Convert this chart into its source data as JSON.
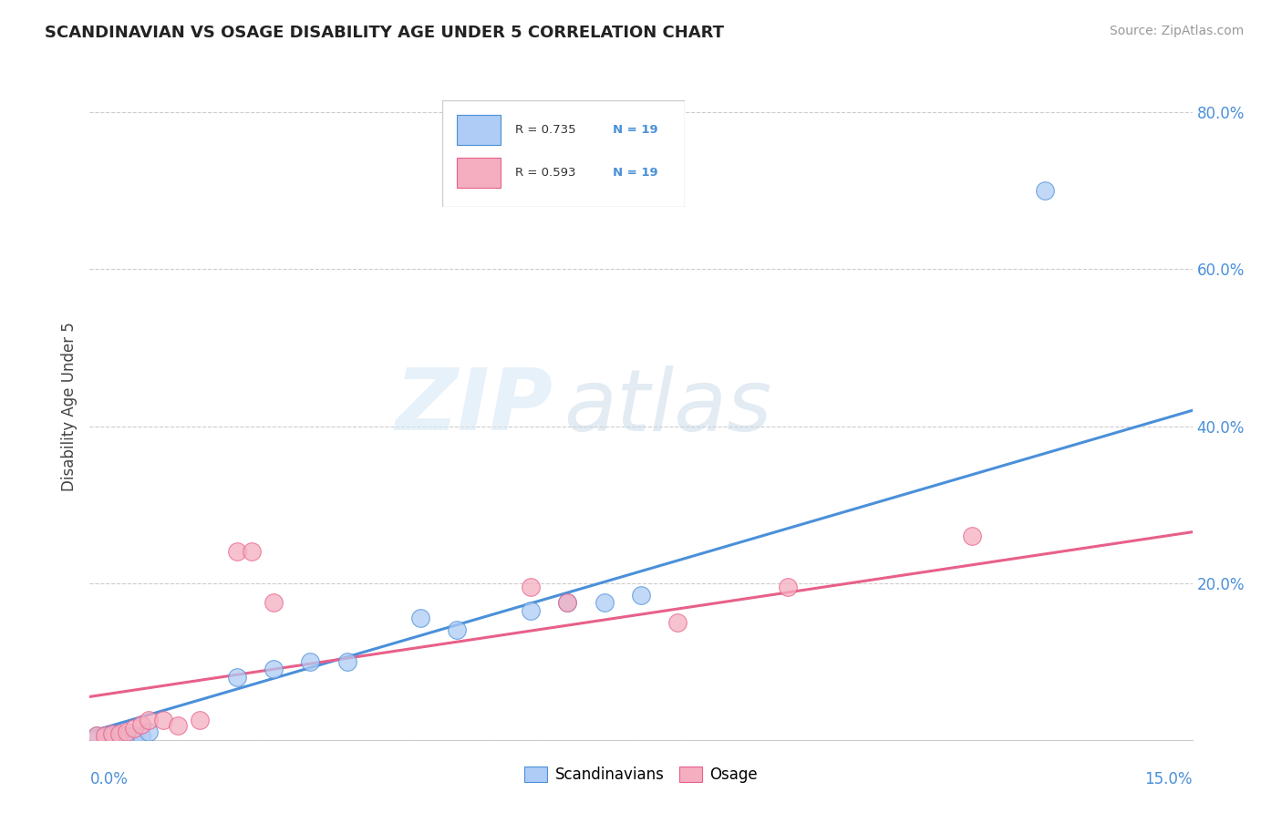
{
  "title": "SCANDINAVIAN VS OSAGE DISABILITY AGE UNDER 5 CORRELATION CHART",
  "source": "Source: ZipAtlas.com",
  "ylabel": "Disability Age Under 5",
  "xlim": [
    0.0,
    0.15
  ],
  "ylim": [
    0.0,
    0.85
  ],
  "yticks": [
    0.0,
    0.2,
    0.4,
    0.6,
    0.8
  ],
  "ytick_labels": [
    "",
    "20.0%",
    "40.0%",
    "60.0%",
    "80.0%"
  ],
  "r_scandinavian": 0.735,
  "r_osage": 0.593,
  "n_scandinavian": 19,
  "n_osage": 19,
  "scandinavian_color": "#aeccf5",
  "osage_color": "#f5aec0",
  "line_scandinavian_color": "#4a90d9",
  "line_osage_color": "#e8608a",
  "watermark_zip": "ZIP",
  "watermark_atlas": "atlas",
  "scandinavian_x": [
    0.001,
    0.002,
    0.003,
    0.004,
    0.005,
    0.006,
    0.007,
    0.008,
    0.02,
    0.025,
    0.03,
    0.035,
    0.045,
    0.05,
    0.06,
    0.065,
    0.07,
    0.075,
    0.13
  ],
  "scandinavian_y": [
    0.005,
    0.005,
    0.005,
    0.005,
    0.005,
    0.005,
    0.005,
    0.01,
    0.08,
    0.09,
    0.1,
    0.1,
    0.155,
    0.14,
    0.165,
    0.175,
    0.175,
    0.185,
    0.7
  ],
  "osage_x": [
    0.001,
    0.002,
    0.003,
    0.004,
    0.005,
    0.006,
    0.007,
    0.008,
    0.01,
    0.012,
    0.015,
    0.02,
    0.022,
    0.025,
    0.06,
    0.065,
    0.08,
    0.095,
    0.12
  ],
  "osage_y": [
    0.005,
    0.005,
    0.008,
    0.008,
    0.01,
    0.015,
    0.02,
    0.025,
    0.025,
    0.018,
    0.025,
    0.24,
    0.24,
    0.175,
    0.195,
    0.175,
    0.15,
    0.195,
    0.26
  ],
  "sc_trend_x0": 0.0,
  "sc_trend_y0": 0.01,
  "sc_trend_x1": 0.15,
  "sc_trend_y1": 0.42,
  "os_trend_x0": 0.0,
  "os_trend_y0": 0.055,
  "os_trend_x1": 0.15,
  "os_trend_y1": 0.265
}
